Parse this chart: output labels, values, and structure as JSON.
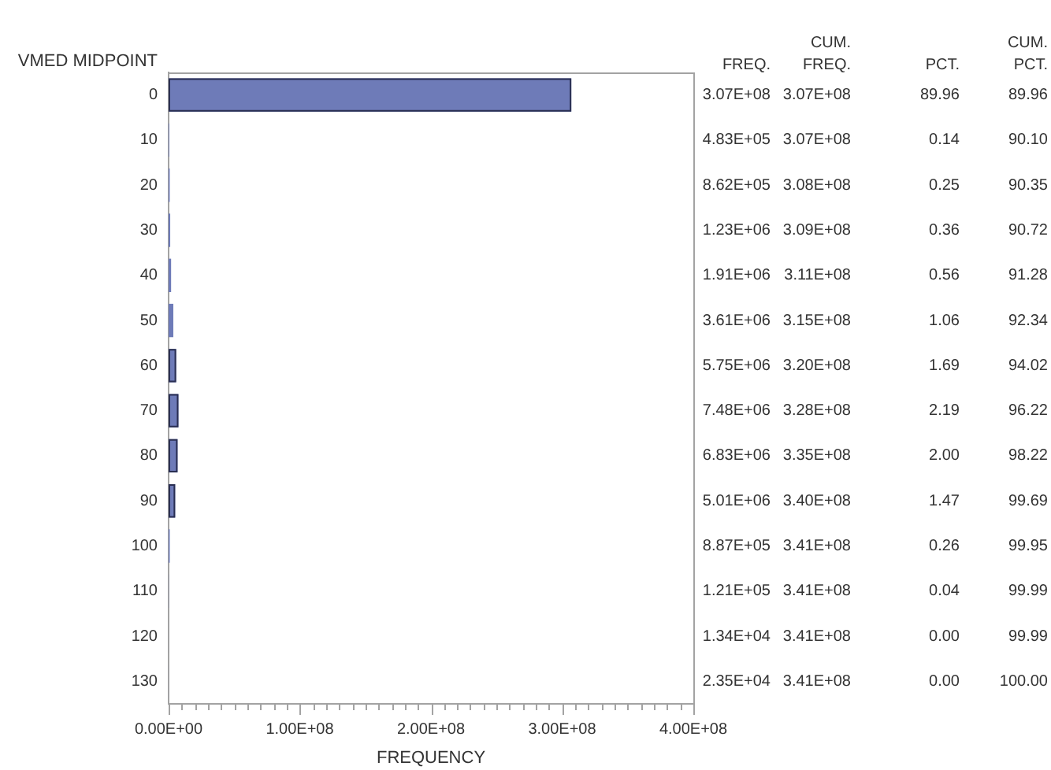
{
  "chart_data": {
    "type": "bar",
    "orientation": "horizontal",
    "categories": [
      "0",
      "10",
      "20",
      "30",
      "40",
      "50",
      "60",
      "70",
      "80",
      "90",
      "100",
      "110",
      "120",
      "130"
    ],
    "values": [
      307000000,
      483000,
      862000,
      1230000,
      1910000,
      3610000,
      5750000,
      7480000,
      6830000,
      5010000,
      887000,
      121000,
      13400,
      23500
    ],
    "value_labels": [
      "3.07E+08",
      "4.83E+05",
      "8.62E+05",
      "1.23E+06",
      "1.91E+06",
      "3.61E+06",
      "5.75E+06",
      "7.48E+06",
      "6.83E+06",
      "5.01E+06",
      "8.87E+05",
      "1.21E+05",
      "1.34E+04",
      "2.35E+04"
    ],
    "color": "#6e7bb8",
    "xlim": [
      0,
      400000000
    ],
    "xticks": [
      {
        "value": 0,
        "label": "0.00E+00"
      },
      {
        "value": 10000000,
        "label": null
      },
      {
        "value": 20000000,
        "label": null
      },
      {
        "value": 30000000,
        "label": null
      },
      {
        "value": 40000000,
        "label": null
      },
      {
        "value": 50000000,
        "label": null
      },
      {
        "value": 60000000,
        "label": null
      },
      {
        "value": 70000000,
        "label": null
      },
      {
        "value": 80000000,
        "label": null
      },
      {
        "value": 90000000,
        "label": null
      },
      {
        "value": 100000000,
        "label": "1.00E+08"
      },
      {
        "value": 110000000,
        "label": null
      },
      {
        "value": 120000000,
        "label": null
      },
      {
        "value": 130000000,
        "label": null
      },
      {
        "value": 140000000,
        "label": null
      },
      {
        "value": 150000000,
        "label": null
      },
      {
        "value": 160000000,
        "label": null
      },
      {
        "value": 170000000,
        "label": null
      },
      {
        "value": 180000000,
        "label": null
      },
      {
        "value": 190000000,
        "label": null
      },
      {
        "value": 200000000,
        "label": "2.00E+08"
      },
      {
        "value": 210000000,
        "label": null
      },
      {
        "value": 220000000,
        "label": null
      },
      {
        "value": 230000000,
        "label": null
      },
      {
        "value": 240000000,
        "label": null
      },
      {
        "value": 250000000,
        "label": null
      },
      {
        "value": 260000000,
        "label": null
      },
      {
        "value": 270000000,
        "label": null
      },
      {
        "value": 280000000,
        "label": null
      },
      {
        "value": 290000000,
        "label": null
      },
      {
        "value": 300000000,
        "label": "3.00E+08"
      },
      {
        "value": 310000000,
        "label": null
      },
      {
        "value": 320000000,
        "label": null
      },
      {
        "value": 330000000,
        "label": null
      },
      {
        "value": 340000000,
        "label": null
      },
      {
        "value": 350000000,
        "label": null
      },
      {
        "value": 360000000,
        "label": null
      },
      {
        "value": 370000000,
        "label": null
      },
      {
        "value": 380000000,
        "label": null
      },
      {
        "value": 390000000,
        "label": null
      },
      {
        "value": 400000000,
        "label": "4.00E+08"
      }
    ],
    "xlabel": "FREQUENCY",
    "ylabel": "VMED MIDPOINT",
    "annotations": [
      "FREQ.",
      "CUM. FREQ.",
      "PCT.",
      "CUM. PCT.",
      "3.07E+08",
      "89.96",
      "89.96",
      "3.07E+08",
      "0.14",
      "90.10",
      "3.08E+08",
      "0.25",
      "90.35",
      "3.09E+08",
      "0.36",
      "90.72",
      "3.11E+08",
      "0.56",
      "91.28",
      "3.15E+08",
      "1.06",
      "92.34",
      "3.20E+08",
      "1.69",
      "94.02",
      "3.28E+08",
      "2.19",
      "96.22",
      "3.35E+08",
      "2.00",
      "98.22",
      "3.40E+08",
      "1.47",
      "99.69",
      "3.41E+08",
      "0.26",
      "99.95",
      "3.41E+08",
      "0.04",
      "99.99",
      "3.41E+08",
      "0.00",
      "99.99",
      "3.41E+08",
      "0.00",
      "100.00"
    ]
  }
}
